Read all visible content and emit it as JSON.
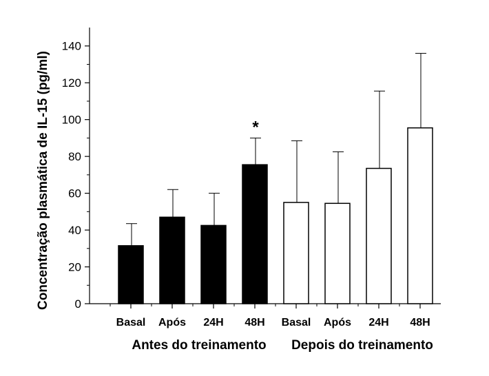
{
  "chart_data": {
    "type": "bar",
    "ylabel": "Concentração plasmática de IL-15 (pg/ml)",
    "ylim": [
      0,
      150
    ],
    "yticks": [
      0,
      20,
      40,
      60,
      80,
      100,
      120,
      140
    ],
    "grid": false,
    "categories": [
      "Basal",
      "Após",
      "24H",
      "48H",
      "Basal",
      "Após",
      "24H",
      "48H"
    ],
    "values": [
      31.5,
      47,
      42.5,
      75.5,
      55,
      54.5,
      73.5,
      95.5
    ],
    "errors_upper": [
      43.5,
      62,
      60,
      90,
      88.5,
      82.5,
      115.5,
      136
    ],
    "bar_fill": [
      "#000000",
      "#000000",
      "#000000",
      "#000000",
      "#ffffff",
      "#ffffff",
      "#ffffff",
      "#ffffff"
    ],
    "groups": [
      {
        "label": "Antes do treinamento",
        "start": 0,
        "end": 3
      },
      {
        "label": "Depois do treinamento",
        "start": 4,
        "end": 7
      }
    ],
    "annotations": [
      {
        "index": 3,
        "text": "*"
      }
    ]
  }
}
